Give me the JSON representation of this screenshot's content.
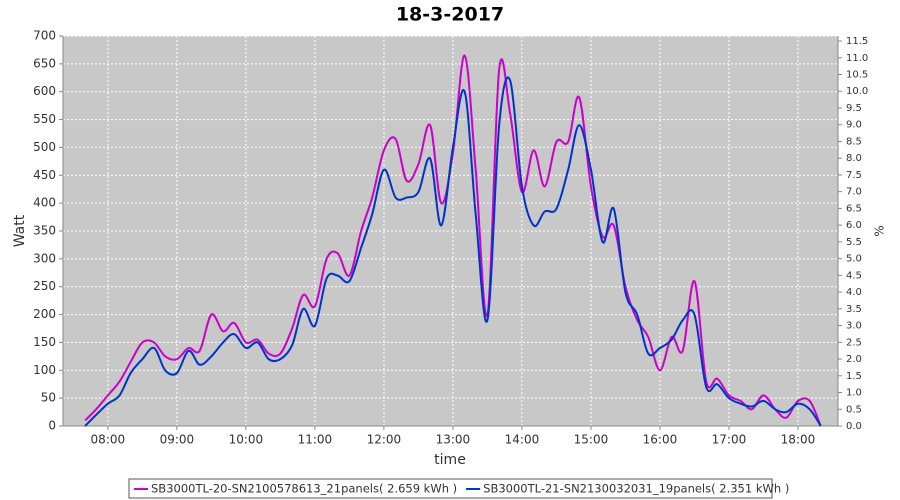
{
  "chart_data": {
    "type": "line",
    "title": "18-3-2017",
    "xlabel": "time",
    "ylabel": "Watt",
    "y2label": "%",
    "x": [
      7.5,
      7.67,
      7.83,
      8,
      8.17,
      8.33,
      8.5,
      8.67,
      8.83,
      9,
      9.17,
      9.33,
      9.5,
      9.67,
      9.83,
      10,
      10.17,
      10.33,
      10.5,
      10.67,
      10.83,
      11,
      11.17,
      11.33,
      11.5,
      11.67,
      11.83,
      12,
      12.17,
      12.33,
      12.5,
      12.67,
      12.83,
      13,
      13.17,
      13.33,
      13.5,
      13.67,
      13.83,
      14,
      14.17,
      14.33,
      14.5,
      14.67,
      14.83,
      15,
      15.17,
      15.33,
      15.5,
      15.67,
      15.83,
      16,
      16.17,
      16.33,
      16.5,
      16.67,
      16.83,
      17,
      17.17,
      17.33,
      17.5,
      17.67,
      17.83,
      18,
      18.17,
      18.33
    ],
    "series": [
      {
        "name": "SB3000TL-20-SN2100578613_21panels( 2.659 kWh )",
        "color": "#cc00cc",
        "values": [
          null,
          10,
          30,
          55,
          80,
          115,
          150,
          150,
          125,
          120,
          140,
          135,
          200,
          170,
          185,
          150,
          155,
          130,
          130,
          175,
          235,
          215,
          300,
          310,
          270,
          350,
          410,
          495,
          515,
          440,
          470,
          540,
          400,
          490,
          665,
          460,
          200,
          640,
          560,
          420,
          495,
          430,
          510,
          510,
          590,
          430,
          340,
          360,
          250,
          190,
          160,
          100,
          160,
          135,
          260,
          80,
          85,
          55,
          45,
          30,
          55,
          30,
          15,
          45,
          45,
          0
        ]
      },
      {
        "name": "SB3000TL-21-SN2130032031_19panels( 2.351 kWh )",
        "color": "#0033cc",
        "values": [
          null,
          0,
          20,
          40,
          55,
          95,
          120,
          140,
          100,
          95,
          135,
          110,
          125,
          150,
          165,
          140,
          150,
          120,
          120,
          145,
          210,
          180,
          265,
          270,
          260,
          320,
          380,
          460,
          410,
          410,
          420,
          480,
          360,
          500,
          600,
          380,
          190,
          540,
          620,
          430,
          360,
          385,
          390,
          460,
          540,
          460,
          330,
          390,
          240,
          200,
          130,
          140,
          155,
          190,
          200,
          70,
          75,
          50,
          40,
          35,
          45,
          30,
          25,
          40,
          30,
          0
        ]
      }
    ],
    "xlim": [
      7.35,
      18.58
    ],
    "xticks": [
      {
        "value": 8,
        "label": "08:00"
      },
      {
        "value": 9,
        "label": "09:00"
      },
      {
        "value": 10,
        "label": "10:00"
      },
      {
        "value": 11,
        "label": "11:00"
      },
      {
        "value": 12,
        "label": "12:00"
      },
      {
        "value": 13,
        "label": "13:00"
      },
      {
        "value": 14,
        "label": "14:00"
      },
      {
        "value": 15,
        "label": "15:00"
      },
      {
        "value": 16,
        "label": "16:00"
      },
      {
        "value": 17,
        "label": "17:00"
      },
      {
        "value": 18,
        "label": "18:00"
      }
    ],
    "ylim": [
      0,
      700
    ],
    "yticks": [
      0,
      50,
      100,
      150,
      200,
      250,
      300,
      350,
      400,
      450,
      500,
      550,
      600,
      650,
      700
    ],
    "y2lim": [
      0,
      11.65
    ],
    "y2ticks": [
      {
        "value": 0,
        "label": "0.0"
      },
      {
        "value": 0.5,
        "label": "0.5"
      },
      {
        "value": 1,
        "label": "1.0"
      },
      {
        "value": 1.5,
        "label": "1.5"
      },
      {
        "value": 2,
        "label": "2.0"
      },
      {
        "value": 2.5,
        "label": "2.5"
      },
      {
        "value": 3,
        "label": "3.0"
      },
      {
        "value": 3.5,
        "label": "3.5"
      },
      {
        "value": 4,
        "label": "4.0"
      },
      {
        "value": 4.5,
        "label": "4.5"
      },
      {
        "value": 5,
        "label": "5.0"
      },
      {
        "value": 5.5,
        "label": "5.5"
      },
      {
        "value": 6,
        "label": "6.0"
      },
      {
        "value": 6.5,
        "label": "6.5"
      },
      {
        "value": 7,
        "label": "7.0"
      },
      {
        "value": 7.5,
        "label": "7.5"
      },
      {
        "value": 8,
        "label": "8.0"
      },
      {
        "value": 8.5,
        "label": "8.5"
      },
      {
        "value": 9,
        "label": "9.0"
      },
      {
        "value": 9.5,
        "label": "9.5"
      },
      {
        "value": 10,
        "label": "10.0"
      },
      {
        "value": 10.5,
        "label": "10.5"
      },
      {
        "value": 11,
        "label": "11.0"
      },
      {
        "value": 11.5,
        "label": "11.5"
      }
    ],
    "grid": true,
    "legend": "bottom"
  }
}
